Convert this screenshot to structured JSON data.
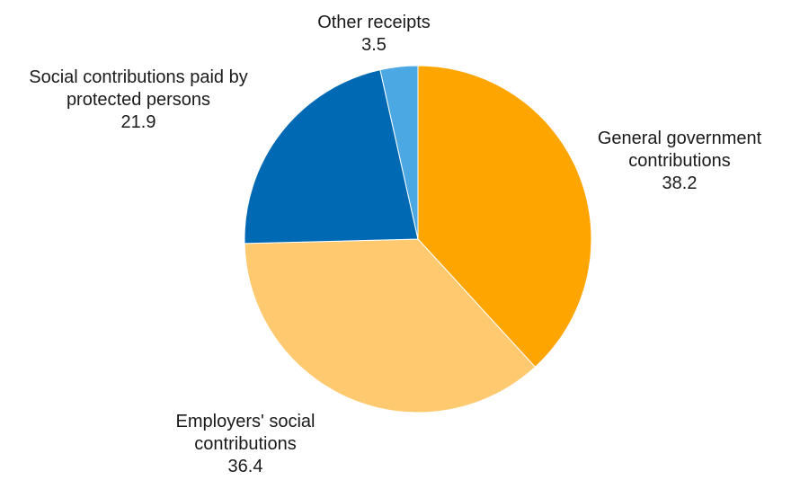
{
  "chart_data": {
    "type": "pie",
    "title": "",
    "slices": [
      {
        "label_lines": [
          "General government",
          "contributions"
        ],
        "value": 38.2,
        "value_label": "38.2",
        "color": "#FFA500"
      },
      {
        "label_lines": [
          "Employers' social",
          "contributions"
        ],
        "value": 36.4,
        "value_label": "36.4",
        "color": "#FFC970"
      },
      {
        "label_lines": [
          "Social contributions paid by",
          "protected persons"
        ],
        "value": 21.9,
        "value_label": "21.9",
        "color": "#0069B4"
      },
      {
        "label_lines": [
          "Other receipts"
        ],
        "value": 3.5,
        "value_label": "3.5",
        "color": "#4BA8E3"
      }
    ],
    "start": "12 o'clock",
    "direction": "clockwise",
    "legend": "none (direct labels)"
  }
}
